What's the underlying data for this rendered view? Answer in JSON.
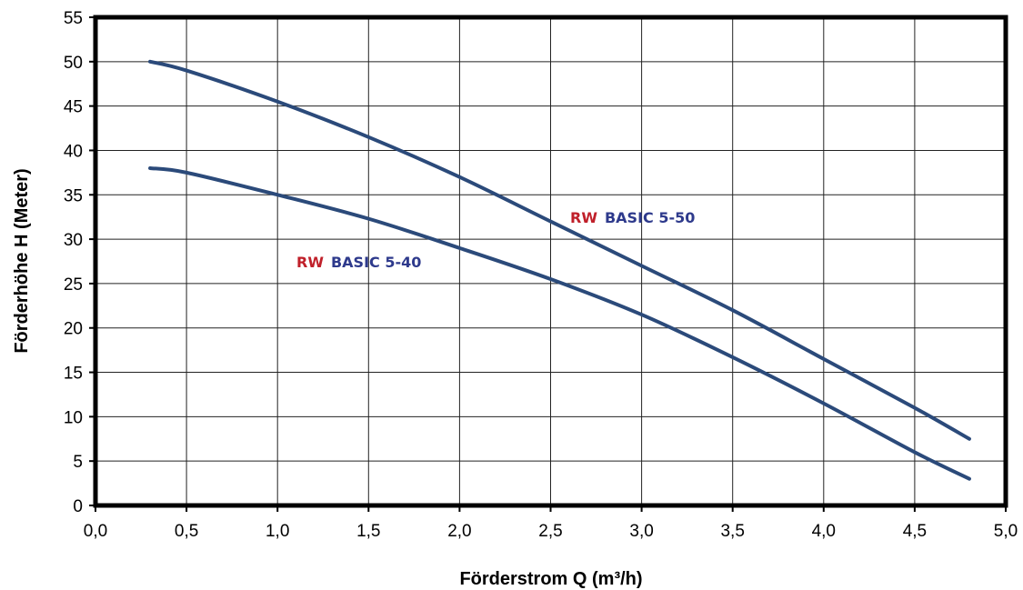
{
  "chart_data": {
    "type": "line",
    "xlabel": "Förderstrom Q (m³/h)",
    "ylabel": "Förderhöhe H (Meter)",
    "xlim": [
      0,
      5
    ],
    "ylim": [
      0,
      55
    ],
    "x_ticks": [
      "0,0",
      "0,5",
      "1,0",
      "1,5",
      "2,0",
      "2,5",
      "3,0",
      "3,5",
      "4,0",
      "4,5",
      "5,0"
    ],
    "y_ticks": [
      "0",
      "5",
      "10",
      "15",
      "20",
      "25",
      "30",
      "35",
      "40",
      "45",
      "50",
      "55"
    ],
    "grid": true,
    "legend": "none",
    "series_color": "#2b4a7a",
    "brand_color": "#c0202a",
    "label_color": "#2e3a8c",
    "series": [
      {
        "brand": "RW",
        "model": "BASIC 5-50",
        "x": [
          0.3,
          0.5,
          1.0,
          1.5,
          2.0,
          2.5,
          3.0,
          3.5,
          4.0,
          4.5,
          4.8
        ],
        "y": [
          50,
          49,
          45.5,
          41.5,
          37,
          32,
          27,
          22,
          16.5,
          11,
          7.5
        ]
      },
      {
        "brand": "RW",
        "model": "BASIC 5-40",
        "x": [
          0.3,
          0.5,
          1.0,
          1.5,
          2.0,
          2.5,
          3.0,
          3.5,
          4.0,
          4.5,
          4.8
        ],
        "y": [
          38,
          37.5,
          35,
          32.3,
          29,
          25.5,
          21.5,
          16.7,
          11.5,
          6,
          3
        ]
      }
    ]
  }
}
